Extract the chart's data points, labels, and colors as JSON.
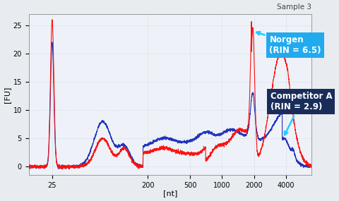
{
  "title": "Sample 3",
  "xlabel": "[nt]",
  "ylabel": "[FU]",
  "ylim": [
    -1.5,
    27
  ],
  "xtick_positions": [
    25,
    200,
    500,
    1000,
    2000,
    4000
  ],
  "xtick_labels": [
    "25",
    "200",
    "500",
    "1000",
    "2000",
    "4000"
  ],
  "ytick_positions": [
    0,
    5,
    10,
    15,
    20,
    25
  ],
  "red_color": "#ff1111",
  "blue_color": "#2233bb",
  "bg_color": "#eef2f8",
  "grid_color": "#c0c8d8",
  "norgen_box_color": "#22aaee",
  "competitor_box_color": "#1a2d5a",
  "norgen_label": "Norgen\n(RIN = 6.5)",
  "competitor_label": "Competitor A\n(RIN = 2.9)",
  "xlim_nt": [
    15,
    7000
  ]
}
